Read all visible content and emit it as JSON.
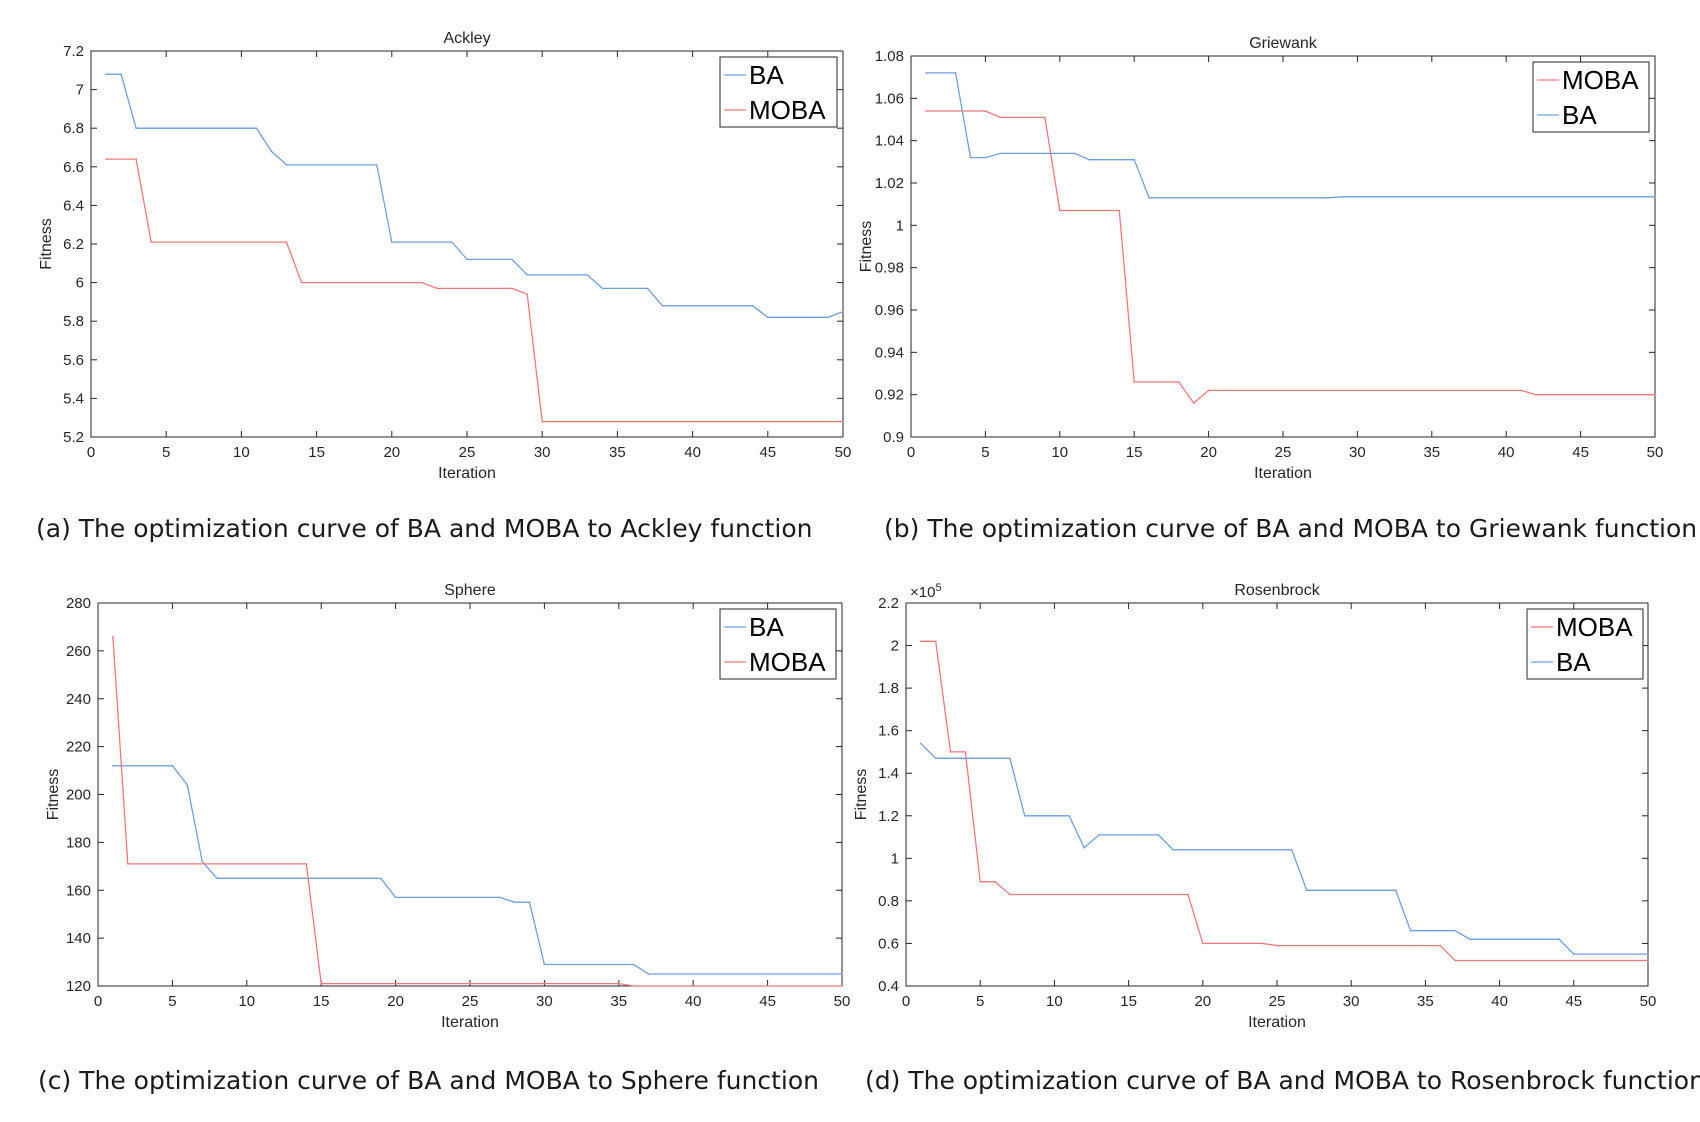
{
  "figure": {
    "captions": [
      "(a) The optimization curve of BA and MOBA to Ackley function",
      "(b) The optimization curve of BA and MOBA to Griewank function",
      "(c) The optimization curve of BA and MOBA to Sphere function",
      "(d) The optimization curve of BA and MOBA to Rosenbrock function"
    ]
  },
  "colors": {
    "BA": "#6f9fe0",
    "MOBA": "#f0787a",
    "axis": "#262626",
    "text": "#262626"
  },
  "chart_data": [
    {
      "type": "line",
      "title": "Ackley",
      "xlabel": "Iteration",
      "ylabel": "Fitness",
      "xlim": [
        0,
        50
      ],
      "ylim": [
        5.2,
        7.2
      ],
      "xticks": [
        0,
        5,
        10,
        15,
        20,
        25,
        30,
        35,
        40,
        45,
        50
      ],
      "yticks": [
        5.2,
        5.4,
        5.6,
        5.8,
        6,
        6.2,
        6.4,
        6.6,
        6.8,
        7,
        7.2
      ],
      "ytick_labels": [
        "5.2",
        "5.4",
        "5.6",
        "5.8",
        "6",
        "6.2",
        "6.4",
        "6.6",
        "6.8",
        "7",
        "7.2"
      ],
      "exponent": null,
      "legend": [
        "BA",
        "MOBA"
      ],
      "legend_position": "top-right",
      "series": [
        {
          "name": "BA",
          "color": "#6f9fe0",
          "x": [
            1,
            2,
            3,
            11,
            12,
            13,
            19,
            20,
            24,
            25,
            28,
            29,
            33,
            34,
            37,
            38,
            44,
            45,
            49,
            50
          ],
          "y": [
            7.08,
            7.08,
            6.8,
            6.8,
            6.68,
            6.61,
            6.61,
            6.21,
            6.21,
            6.12,
            6.12,
            6.04,
            6.04,
            5.97,
            5.97,
            5.88,
            5.88,
            5.82,
            5.82,
            5.85
          ]
        },
        {
          "name": "MOBA",
          "color": "#f0787a",
          "x": [
            1,
            3,
            4,
            13,
            14,
            22,
            23,
            28,
            29,
            30,
            50
          ],
          "y": [
            6.64,
            6.64,
            6.21,
            6.21,
            6.0,
            6.0,
            5.97,
            5.97,
            5.94,
            5.28,
            5.28
          ]
        }
      ]
    },
    {
      "type": "line",
      "title": "Griewank",
      "xlabel": "Iteration",
      "ylabel": "Fitness",
      "xlim": [
        0,
        50
      ],
      "ylim": [
        0.9,
        1.08
      ],
      "xticks": [
        0,
        5,
        10,
        15,
        20,
        25,
        30,
        35,
        40,
        45,
        50
      ],
      "yticks": [
        0.9,
        0.92,
        0.94,
        0.96,
        0.98,
        1.0,
        1.02,
        1.04,
        1.06,
        1.08
      ],
      "ytick_labels": [
        "0.9",
        "0.92",
        "0.94",
        "0.96",
        "0.98",
        "1",
        "1.02",
        "1.04",
        "1.06",
        "1.08"
      ],
      "exponent": null,
      "legend": [
        "MOBA",
        "BA"
      ],
      "legend_position": "top-right",
      "series": [
        {
          "name": "MOBA",
          "color": "#f0787a",
          "x": [
            1,
            5,
            6,
            9,
            10,
            14,
            15,
            18,
            19,
            20,
            41,
            42,
            50
          ],
          "y": [
            1.054,
            1.054,
            1.051,
            1.051,
            1.007,
            1.007,
            0.926,
            0.926,
            0.916,
            0.922,
            0.922,
            0.92,
            0.92
          ]
        },
        {
          "name": "BA",
          "color": "#6f9fe0",
          "x": [
            1,
            3,
            4,
            5,
            6,
            11,
            12,
            15,
            16,
            28,
            29,
            50
          ],
          "y": [
            1.072,
            1.072,
            1.032,
            1.032,
            1.034,
            1.034,
            1.031,
            1.031,
            1.013,
            1.013,
            1.0135,
            1.0135
          ]
        }
      ]
    },
    {
      "type": "line",
      "title": "Sphere",
      "xlabel": "Iteration",
      "ylabel": "Fitness",
      "xlim": [
        0,
        50
      ],
      "ylim": [
        120,
        280
      ],
      "xticks": [
        0,
        5,
        10,
        15,
        20,
        25,
        30,
        35,
        40,
        45,
        50
      ],
      "yticks": [
        120,
        140,
        160,
        180,
        200,
        220,
        240,
        260,
        280
      ],
      "ytick_labels": [
        "120",
        "140",
        "160",
        "180",
        "200",
        "220",
        "240",
        "260",
        "280"
      ],
      "exponent": null,
      "legend": [
        "BA",
        "MOBA"
      ],
      "legend_position": "top-right",
      "series": [
        {
          "name": "BA",
          "color": "#6f9fe0",
          "x": [
            1,
            5,
            6,
            7,
            8,
            19,
            20,
            27,
            28,
            29,
            30,
            36,
            37,
            50
          ],
          "y": [
            212,
            212,
            204,
            172,
            165,
            165,
            157,
            157,
            155,
            155,
            129,
            129,
            125,
            125
          ]
        },
        {
          "name": "MOBA",
          "color": "#f0787a",
          "x": [
            1,
            2,
            14,
            15,
            35,
            36,
            50
          ],
          "y": [
            266,
            171,
            171,
            121,
            121,
            120,
            120
          ]
        }
      ]
    },
    {
      "type": "line",
      "title": "Rosenbrock",
      "xlabel": "Iteration",
      "ylabel": "Fitness",
      "xlim": [
        0,
        50
      ],
      "ylim": [
        0.4,
        2.2
      ],
      "xticks": [
        0,
        5,
        10,
        15,
        20,
        25,
        30,
        35,
        40,
        45,
        50
      ],
      "yticks": [
        0.4,
        0.6,
        0.8,
        1.0,
        1.2,
        1.4,
        1.6,
        1.8,
        2.0,
        2.2
      ],
      "ytick_labels": [
        "0.4",
        "0.6",
        "0.8",
        "1",
        "1.2",
        "1.4",
        "1.6",
        "1.8",
        "2",
        "2.2"
      ],
      "exponent": "×10^5",
      "exponent_base": "×10",
      "exponent_power": "5",
      "legend": [
        "MOBA",
        "BA"
      ],
      "legend_position": "top-right",
      "series": [
        {
          "name": "MOBA",
          "color": "#f0787a",
          "x": [
            1,
            2,
            3,
            4,
            5,
            6,
            7,
            19,
            20,
            24,
            25,
            36,
            37,
            50
          ],
          "y": [
            2.02,
            2.02,
            1.5,
            1.5,
            0.89,
            0.89,
            0.83,
            0.83,
            0.6,
            0.6,
            0.59,
            0.59,
            0.52,
            0.52
          ]
        },
        {
          "name": "BA",
          "color": "#6f9fe0",
          "x": [
            1,
            2,
            7,
            8,
            11,
            12,
            13,
            17,
            18,
            26,
            27,
            33,
            34,
            37,
            38,
            44,
            45,
            50
          ],
          "y": [
            1.54,
            1.47,
            1.47,
            1.2,
            1.2,
            1.05,
            1.11,
            1.11,
            1.04,
            1.04,
            0.85,
            0.85,
            0.66,
            0.66,
            0.62,
            0.62,
            0.55,
            0.55
          ]
        }
      ]
    }
  ]
}
